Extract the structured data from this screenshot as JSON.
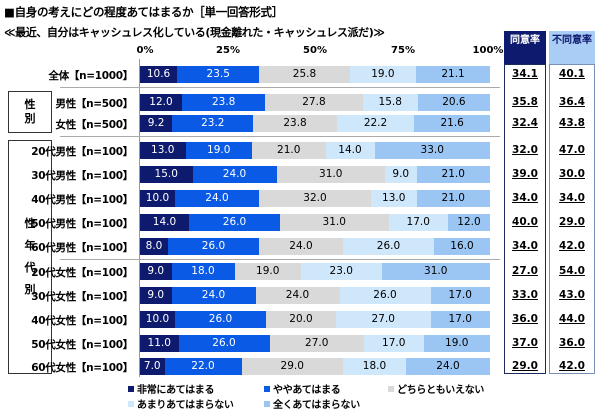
{
  "title": "■自身の考えにどの程度あてはまるか［単一回答形式］",
  "subtitle": "≪最近、自分はキャッシュレス化している(現金離れた・キャッシュレス派だ)≫",
  "axis_ticks": [
    "0%",
    "25%",
    "50%",
    "75%",
    "100%"
  ],
  "columns": {
    "agree": "同意率",
    "disagree": "不同意率"
  },
  "groups": {
    "gender": "性別",
    "gender_age": "性年代別"
  },
  "colors": {
    "s1": "#0d1a6e",
    "s2": "#0a5ae6",
    "s3": "#d9d9d9",
    "s4": "#cfe7fb",
    "s5": "#9bc6f3"
  },
  "legend": [
    "非常にあてはまる",
    "ややあてはまる",
    "どちらともいえない",
    "あまりあてはまらない",
    "全くあてはまらない"
  ],
  "chart_data": {
    "type": "bar",
    "stacked": true,
    "orientation": "horizontal",
    "title": "■自身の考えにどの程度あてはまるか［単一回答形式］",
    "subtitle": "≪最近、自分はキャッシュレス化している(現金離れた・キャッシュレス派だ)≫",
    "xlim": [
      0,
      100
    ],
    "xticks": [
      "0%",
      "25%",
      "50%",
      "75%",
      "100%"
    ],
    "categories": [
      "全体【n=1000】",
      "男性【n=500】",
      "女性【n=500】",
      "20代男性【n=100】",
      "30代男性【n=100】",
      "40代男性【n=100】",
      "50代男性【n=100】",
      "60代男性【n=100】",
      "20代女性【n=100】",
      "30代女性【n=100】",
      "40代女性【n=100】",
      "50代女性【n=100】",
      "60代女性【n=100】"
    ],
    "series": [
      {
        "name": "非常にあてはまる",
        "values": [
          10.6,
          12.0,
          9.2,
          13.0,
          15.0,
          10.0,
          14.0,
          8.0,
          9.0,
          9.0,
          10.0,
          11.0,
          7.0
        ]
      },
      {
        "name": "ややあてはまる",
        "values": [
          23.5,
          23.8,
          23.2,
          19.0,
          24.0,
          24.0,
          26.0,
          26.0,
          18.0,
          24.0,
          26.0,
          26.0,
          22.0
        ]
      },
      {
        "name": "どちらともいえない",
        "values": [
          25.8,
          27.8,
          23.8,
          21.0,
          31.0,
          32.0,
          31.0,
          24.0,
          19.0,
          24.0,
          20.0,
          27.0,
          29.0
        ]
      },
      {
        "name": "あまりあてはまらない",
        "values": [
          19.0,
          15.8,
          22.2,
          14.0,
          9.0,
          13.0,
          17.0,
          26.0,
          23.0,
          26.0,
          27.0,
          17.0,
          18.0
        ]
      },
      {
        "name": "全くあてはまらない",
        "values": [
          21.1,
          20.6,
          21.6,
          33.0,
          21.0,
          21.0,
          12.0,
          16.0,
          31.0,
          17.0,
          17.0,
          19.0,
          24.0
        ]
      }
    ],
    "agree_rate": [
      34.1,
      35.8,
      32.4,
      32.0,
      39.0,
      34.0,
      40.0,
      34.0,
      27.0,
      33.0,
      36.0,
      37.0,
      29.0
    ],
    "disagree_rate": [
      40.1,
      36.4,
      43.8,
      47.0,
      30.0,
      34.0,
      29.0,
      42.0,
      54.0,
      43.0,
      44.0,
      36.0,
      42.0
    ],
    "legend_position": "bottom"
  }
}
